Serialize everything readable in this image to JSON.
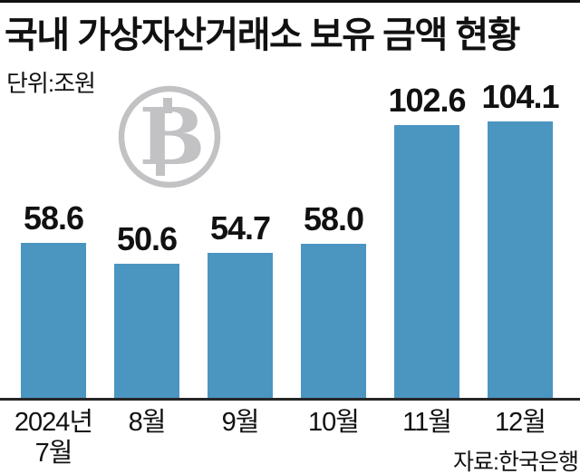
{
  "chart_data": {
    "type": "bar",
    "title": "국내 가상자산거래소 보유 금액 현황",
    "unit": "단위:조원",
    "source": "자료:한국은행",
    "categories": [
      "2024년 7월",
      "8월",
      "9월",
      "10월",
      "11월",
      "12월"
    ],
    "values": [
      58.6,
      50.6,
      54.7,
      58.0,
      102.6,
      104.1
    ],
    "value_labels": [
      "58.6",
      "50.6",
      "54.7",
      "58.0",
      "102.6",
      "104.1"
    ],
    "tick_label_lines": [
      [
        "2024년",
        "7월"
      ],
      [
        "8월"
      ],
      [
        "9월"
      ],
      [
        "10월"
      ],
      [
        "11월"
      ],
      [
        "12월"
      ]
    ],
    "xlabel": "",
    "ylabel": "조원",
    "ylim": [
      0,
      110
    ],
    "grid": false,
    "legend": "none",
    "bar_color": "#4B95C1"
  },
  "style": {
    "watermark_icon": "bitcoin-icon",
    "watermark_color": "#C2C2C4",
    "text_color": "#111111",
    "rule_color": "#111111"
  }
}
